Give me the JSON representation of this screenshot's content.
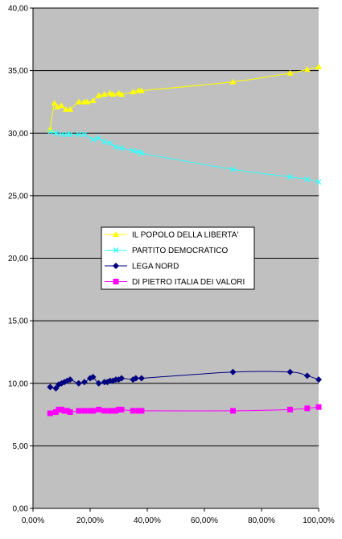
{
  "colors": {
    "plot_area": "#c0c0c0",
    "gridline": "#000000",
    "background": "#ffffff"
  },
  "chart_data": {
    "type": "line",
    "title": "",
    "xlabel": "",
    "ylabel": "",
    "xlim": [
      0,
      1
    ],
    "ylim": [
      0,
      40
    ],
    "x_ticks": [
      "0,00%",
      "20,00%",
      "40,00%",
      "60,00%",
      "80,00%",
      "100,00%"
    ],
    "y_ticks": [
      "0,00",
      "5,00",
      "10,00",
      "15,00",
      "20,00",
      "25,00",
      "30,00",
      "35,00",
      "40,00"
    ],
    "grid": true,
    "legend_position": "center",
    "series": [
      {
        "name": "IL POPOLO DELLA LIBERTA'",
        "color": "#ffff00",
        "marker": "triangle",
        "x": [
          0.06,
          0.075,
          0.085,
          0.1,
          0.115,
          0.13,
          0.16,
          0.18,
          0.19,
          0.21,
          0.23,
          0.25,
          0.27,
          0.28,
          0.3,
          0.31,
          0.35,
          0.37,
          0.38,
          0.7,
          0.9,
          0.96,
          1.0
        ],
        "y": [
          30.3,
          32.4,
          32.1,
          32.2,
          31.9,
          31.9,
          32.5,
          32.5,
          32.5,
          32.6,
          33.0,
          33.1,
          33.2,
          33.1,
          33.2,
          33.1,
          33.3,
          33.4,
          33.4,
          34.1,
          34.8,
          35.1,
          35.3
        ]
      },
      {
        "name": "PARTITO DEMOCRATICO",
        "color": "#33ffff",
        "marker": "x",
        "x": [
          0.06,
          0.08,
          0.1,
          0.12,
          0.13,
          0.16,
          0.18,
          0.21,
          0.23,
          0.25,
          0.27,
          0.29,
          0.31,
          0.35,
          0.37,
          0.38,
          0.7,
          0.9,
          0.96,
          1.0
        ],
        "y": [
          30.1,
          30.0,
          29.9,
          29.9,
          29.9,
          29.9,
          29.9,
          29.5,
          29.6,
          29.3,
          29.2,
          28.9,
          28.8,
          28.6,
          28.5,
          28.4,
          27.1,
          26.5,
          26.3,
          26.1
        ]
      },
      {
        "name": "LEGA NORD",
        "color": "#000080",
        "marker": "diamond",
        "x": [
          0.06,
          0.08,
          0.09,
          0.1,
          0.11,
          0.12,
          0.13,
          0.16,
          0.18,
          0.2,
          0.21,
          0.23,
          0.25,
          0.26,
          0.27,
          0.28,
          0.29,
          0.3,
          0.31,
          0.35,
          0.36,
          0.38,
          0.7,
          0.9,
          0.96,
          1.0
        ],
        "y": [
          9.7,
          9.6,
          9.9,
          10.0,
          10.1,
          10.2,
          10.3,
          10.0,
          10.1,
          10.4,
          10.5,
          10.0,
          10.1,
          10.1,
          10.2,
          10.2,
          10.3,
          10.3,
          10.4,
          10.3,
          10.4,
          10.4,
          10.9,
          10.9,
          10.6,
          10.3
        ]
      },
      {
        "name": "DI PIETRO ITALIA DEI VALORI",
        "color": "#ff00ff",
        "marker": "square",
        "x": [
          0.06,
          0.08,
          0.09,
          0.1,
          0.11,
          0.12,
          0.13,
          0.16,
          0.18,
          0.2,
          0.21,
          0.23,
          0.25,
          0.27,
          0.28,
          0.29,
          0.3,
          0.31,
          0.35,
          0.37,
          0.38,
          0.7,
          0.9,
          0.96,
          1.0
        ],
        "y": [
          7.6,
          7.7,
          7.9,
          7.9,
          7.8,
          7.8,
          7.7,
          7.8,
          7.8,
          7.8,
          7.8,
          7.9,
          7.8,
          7.8,
          7.8,
          7.8,
          7.9,
          7.9,
          7.8,
          7.8,
          7.8,
          7.8,
          7.9,
          8.0,
          8.1
        ]
      }
    ]
  }
}
